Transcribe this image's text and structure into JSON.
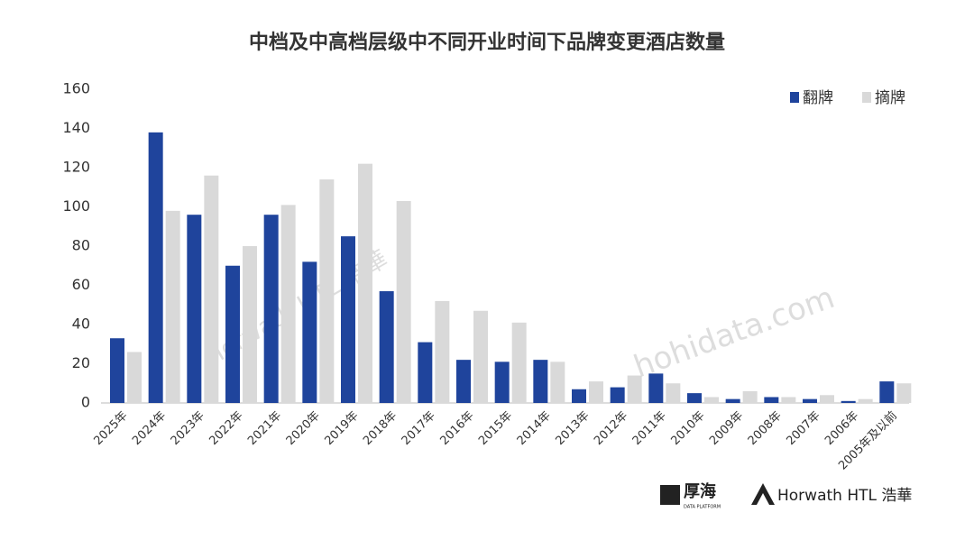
{
  "chart_data": {
    "type": "bar",
    "title": "中档及中高档层级中不同开业时间下品牌变更酒店数量",
    "categories": [
      "2025年",
      "2024年",
      "2023年",
      "2022年",
      "2021年",
      "2020年",
      "2019年",
      "2018年",
      "2017年",
      "2016年",
      "2015年",
      "2014年",
      "2013年",
      "2012年",
      "2011年",
      "2010年",
      "2009年",
      "2008年",
      "2007年",
      "2006年",
      "2005年及以前"
    ],
    "series": [
      {
        "name": "翻牌",
        "color": "#1f449c",
        "values": [
          33,
          138,
          96,
          70,
          96,
          72,
          85,
          57,
          31,
          22,
          21,
          22,
          7,
          8,
          15,
          5,
          2,
          3,
          2,
          1,
          11
        ]
      },
      {
        "name": "摘牌",
        "color": "#d9d9d9",
        "values": [
          26,
          98,
          116,
          80,
          101,
          114,
          122,
          103,
          52,
          47,
          41,
          21,
          11,
          14,
          10,
          3,
          6,
          3,
          4,
          2,
          10
        ]
      }
    ],
    "ylim": [
      0,
      160
    ],
    "yticks": [
      0,
      20,
      40,
      60,
      80,
      100,
      120,
      140,
      160
    ],
    "grid": false,
    "legend": "top-right",
    "watermarks": [
      "Horwath HTL 浩華",
      "hohidata.com"
    ],
    "footer": {
      "logo1": "厚海",
      "logo1_sub": "DATA PLATFORM",
      "logo2": "Horwath HTL 浩華"
    }
  }
}
